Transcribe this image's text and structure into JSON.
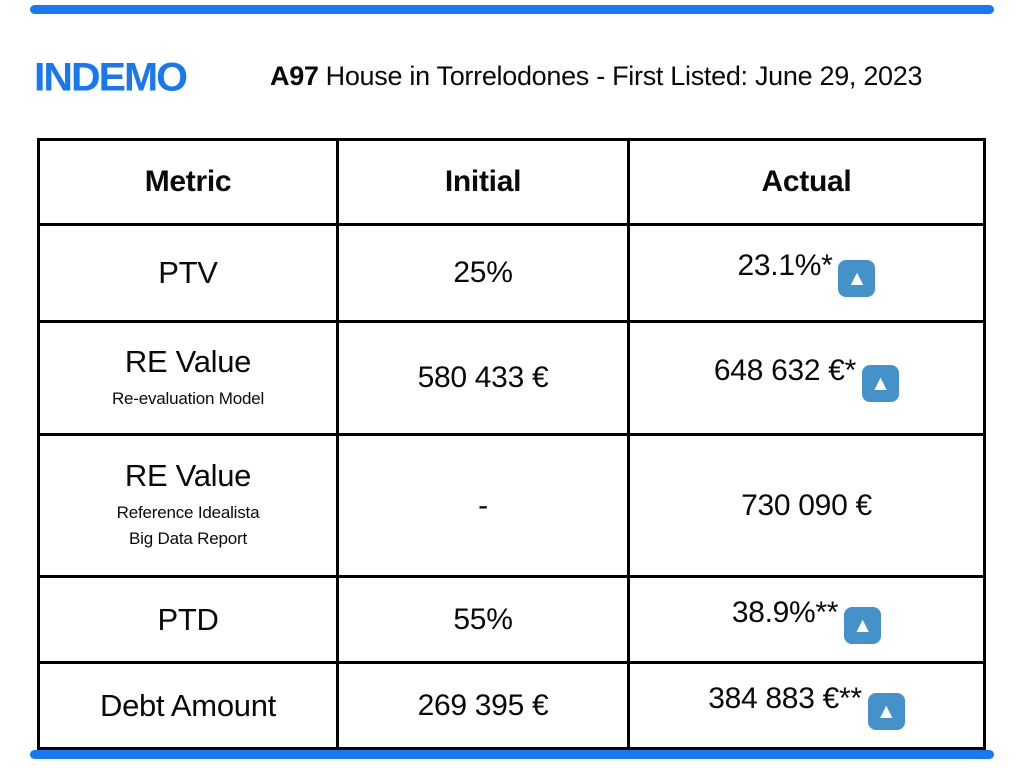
{
  "accent": {
    "bar_color": "#1778F2"
  },
  "logo": {
    "text": "INDEMO",
    "color": "#1778F2"
  },
  "title": {
    "listing_id": "A97",
    "rest": "House in Torrelodones - First Listed: June 29, 2023"
  },
  "table": {
    "headers": [
      "Metric",
      "Initial",
      "Actual"
    ],
    "rows": [
      {
        "metric": "PTV",
        "metric_sub": [],
        "initial": "25%",
        "actual": "23.1%*",
        "actual_has_up_icon": true
      },
      {
        "metric": "RE Value",
        "metric_sub": [
          "Re-evaluation Model"
        ],
        "initial": "580 433 €",
        "actual": "648 632 €*",
        "actual_has_up_icon": true
      },
      {
        "metric": "RE Value",
        "metric_sub": [
          "Reference Idealista",
          "Big Data Report"
        ],
        "initial": "-",
        "actual": "730 090 €",
        "actual_has_up_icon": false
      },
      {
        "metric": "PTD",
        "metric_sub": [],
        "initial": "55%",
        "actual": "38.9%**",
        "actual_has_up_icon": true
      },
      {
        "metric": "Debt Amount",
        "metric_sub": [],
        "initial": "269 395 €",
        "actual": "384 883 €**",
        "actual_has_up_icon": true
      }
    ],
    "up_icon": {
      "glyph": "▲",
      "background": "#4591C9"
    }
  }
}
